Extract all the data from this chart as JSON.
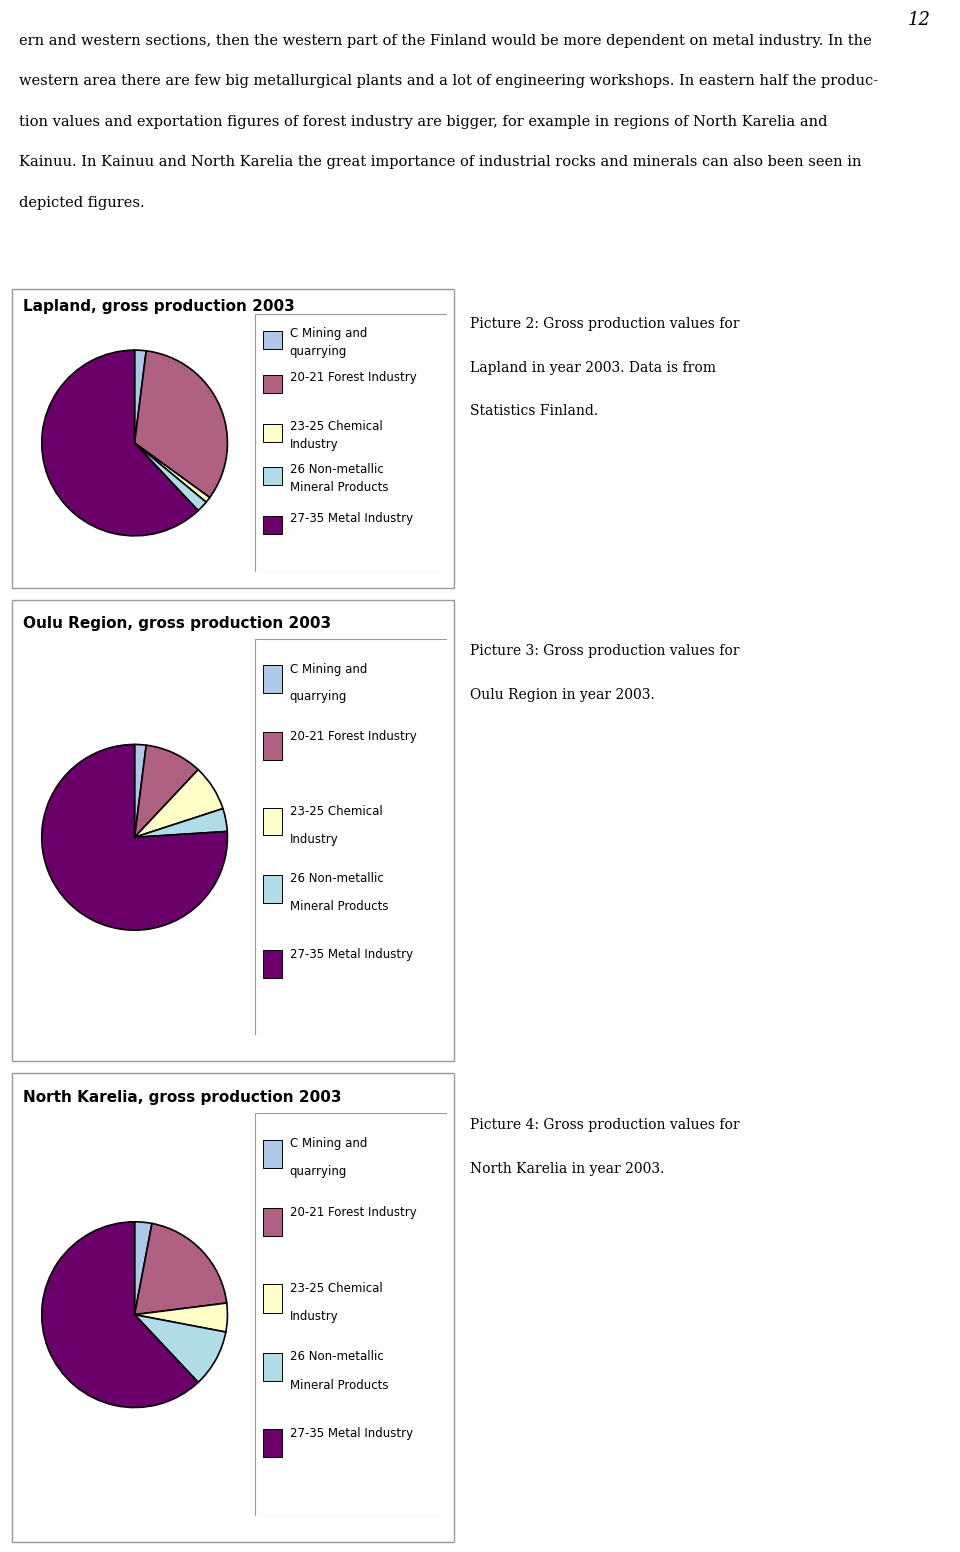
{
  "page_number": "12",
  "header_lines": [
    "ern and western sections, then the western part of the Finland would be more dependent on metal industry. In the",
    "western area there are few big metallurgical plants and a lot of engineering workshops. In eastern half the produc-",
    "tion values and exportation figures of forest industry are bigger, for example in regions of North Karelia and",
    "Kainuu. In Kainuu and North Karelia the great importance of industrial rocks and minerals can also been seen in",
    "depicted figures."
  ],
  "charts": [
    {
      "title": "Lapland, gross production 2003",
      "caption_lines": [
        "Picture 2: Gross production values for",
        "Lapland in year 2003. Data is from",
        "Statistics Finland."
      ],
      "values": [
        2,
        33,
        1,
        2,
        62
      ],
      "colors": [
        "#adc8e8",
        "#b06080",
        "#ffffc8",
        "#b0dce8",
        "#6b006b"
      ],
      "startangle": 90
    },
    {
      "title": "Oulu Region, gross production 2003",
      "caption_lines": [
        "Picture 3: Gross production values for",
        "Oulu Region in year 2003."
      ],
      "values": [
        2,
        10,
        8,
        4,
        76
      ],
      "colors": [
        "#adc8e8",
        "#b06080",
        "#ffffc8",
        "#b0dce8",
        "#6b006b"
      ],
      "startangle": 90
    },
    {
      "title": "North Karelia, gross production 2003",
      "caption_lines": [
        "Picture 4: Gross production values for",
        "North Karelia in year 2003."
      ],
      "values": [
        3,
        20,
        5,
        10,
        62
      ],
      "colors": [
        "#adc8e8",
        "#b06080",
        "#ffffc8",
        "#b0dce8",
        "#6b006b"
      ],
      "startangle": 90
    }
  ],
  "legend_labels": [
    [
      "C Mining and",
      "quarrying"
    ],
    [
      "20-21 Forest Industry"
    ],
    [
      "23-25 Chemical",
      "Industry"
    ],
    [
      "26 Non-metallic",
      "Mineral Products"
    ],
    [
      "27-35 Metal Industry"
    ]
  ],
  "legend_colors": [
    "#adc8e8",
    "#b06080",
    "#ffffc8",
    "#b0dce8",
    "#6b006b"
  ],
  "bg_color": "#ffffff",
  "text_color": "#000000",
  "box_border_color": "#999999"
}
